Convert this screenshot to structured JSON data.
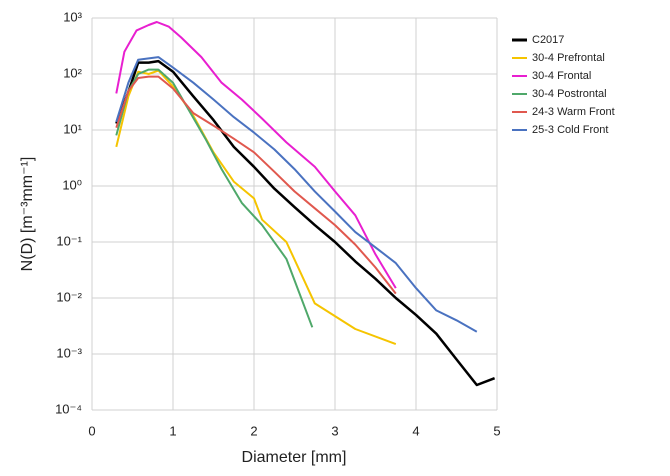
{
  "chart_data": {
    "type": "line",
    "xlabel": "Diameter [mm]",
    "ylabel": "N(D) [m⁻³mm⁻¹]",
    "xlim": [
      0,
      5
    ],
    "xticks": [
      0,
      1,
      2,
      3,
      4,
      5
    ],
    "ylim": [
      0.0001,
      1000
    ],
    "log_y": true,
    "grid": true,
    "yticks": [
      {
        "value": 0.0001,
        "label": "10⁻⁴"
      },
      {
        "value": 0.001,
        "label": "10⁻³"
      },
      {
        "value": 0.01,
        "label": "10⁻²"
      },
      {
        "value": 0.1,
        "label": "10⁻¹"
      },
      {
        "value": 1,
        "label": "10⁰"
      },
      {
        "value": 10,
        "label": "10¹"
      },
      {
        "value": 100,
        "label": "10²"
      },
      {
        "value": 1000,
        "label": "10³"
      }
    ],
    "legend": "right",
    "series": [
      {
        "name": "C2017",
        "color": "#000000",
        "x": [
          0.3,
          0.45,
          0.57,
          0.7,
          0.82,
          1.0,
          1.25,
          1.5,
          1.75,
          2.0,
          2.25,
          2.5,
          2.75,
          3.0,
          3.25,
          3.5,
          3.75,
          4.0,
          4.25,
          4.5,
          4.75,
          4.97
        ],
        "values": [
          13,
          48,
          160,
          160,
          170,
          110,
          40,
          15,
          5,
          2.2,
          0.9,
          0.42,
          0.2,
          0.1,
          0.045,
          0.022,
          0.01,
          0.005,
          0.0023,
          0.0008,
          0.00028,
          0.00037
        ]
      },
      {
        "name": "30-4 Prefrontal",
        "color": "#f5c400",
        "x": [
          0.3,
          0.45,
          0.57,
          0.7,
          0.82,
          1.0,
          1.25,
          1.5,
          1.75,
          2.0,
          2.1,
          2.4,
          2.75,
          3.25,
          3.75
        ],
        "values": [
          5,
          40,
          110,
          100,
          115,
          60,
          18,
          4,
          1.2,
          0.6,
          0.25,
          0.1,
          0.008,
          0.0028,
          0.0015
        ]
      },
      {
        "name": "30-4 Frontal",
        "color": "#e81fd0",
        "x": [
          0.3,
          0.4,
          0.55,
          0.7,
          0.8,
          0.95,
          1.1,
          1.35,
          1.6,
          1.85,
          2.1,
          2.4,
          2.75,
          3.0,
          3.25,
          3.5,
          3.75
        ],
        "values": [
          45,
          250,
          600,
          750,
          850,
          700,
          450,
          200,
          70,
          35,
          16,
          6,
          2.2,
          0.8,
          0.3,
          0.06,
          0.015
        ]
      },
      {
        "name": "30-4 Postrontal",
        "color": "#4fa86a",
        "x": [
          0.3,
          0.45,
          0.57,
          0.7,
          0.82,
          1.0,
          1.2,
          1.4,
          1.6,
          1.85,
          2.1,
          2.4,
          2.72
        ],
        "values": [
          8,
          50,
          100,
          120,
          120,
          70,
          22,
          7,
          2,
          0.5,
          0.2,
          0.05,
          0.003
        ]
      },
      {
        "name": "24-3 Warm Front",
        "color": "#e0584e",
        "x": [
          0.3,
          0.45,
          0.57,
          0.7,
          0.82,
          1.0,
          1.25,
          1.5,
          1.75,
          2.0,
          2.25,
          2.5,
          2.75,
          3.0,
          3.25,
          3.5,
          3.75
        ],
        "values": [
          11,
          50,
          85,
          90,
          90,
          55,
          20,
          12,
          7,
          4,
          1.8,
          0.8,
          0.4,
          0.2,
          0.09,
          0.035,
          0.012
        ]
      },
      {
        "name": "25-3 Cold Front",
        "color": "#4a72c0",
        "x": [
          0.3,
          0.45,
          0.57,
          0.7,
          0.82,
          1.0,
          1.25,
          1.5,
          1.75,
          2.0,
          2.25,
          2.5,
          2.75,
          3.0,
          3.25,
          3.5,
          3.75,
          4.0,
          4.25,
          4.5,
          4.75
        ],
        "values": [
          14,
          70,
          180,
          190,
          200,
          130,
          70,
          35,
          17,
          9,
          4.5,
          2.0,
          0.8,
          0.35,
          0.15,
          0.08,
          0.042,
          0.015,
          0.006,
          0.004,
          0.0025
        ]
      }
    ]
  }
}
